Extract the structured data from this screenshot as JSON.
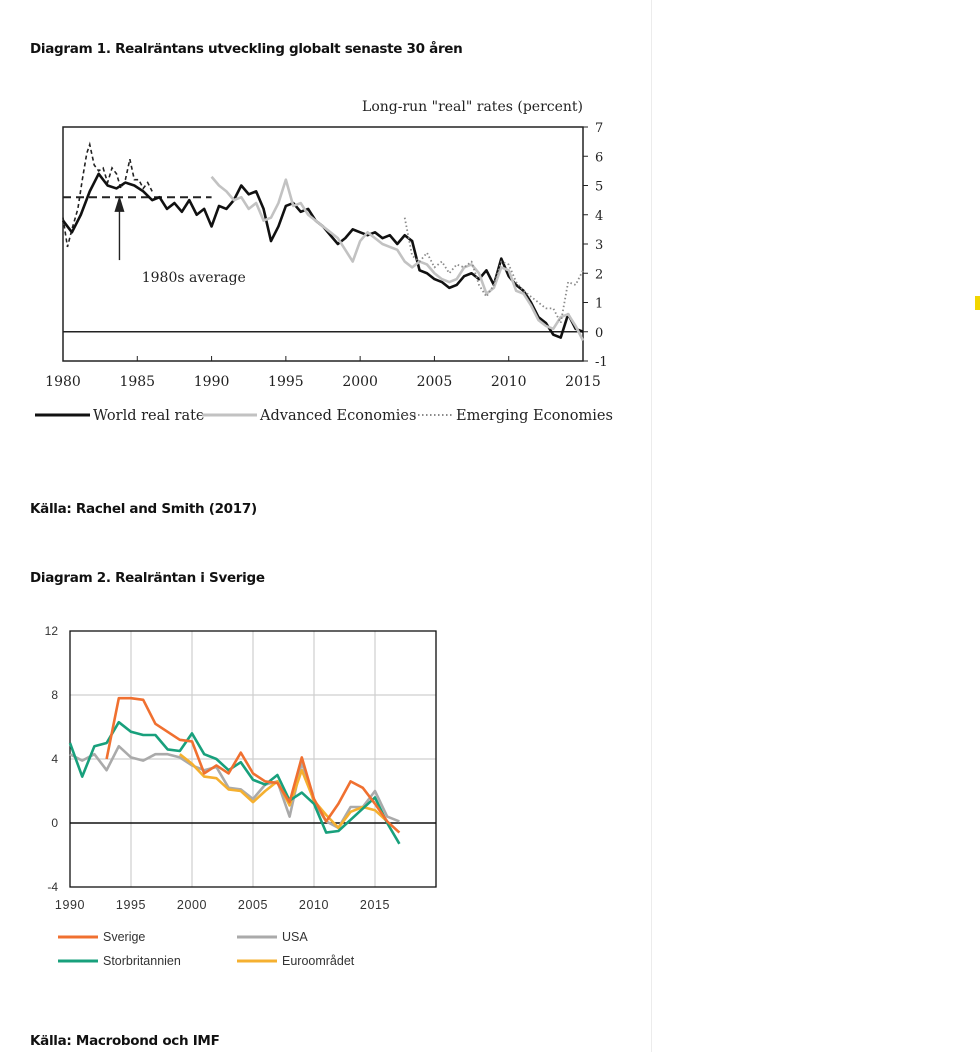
{
  "headings": {
    "diagram1": "Diagram 1. Realräntans utveckling globalt senaste 30 åren",
    "source1": "Källa: Rachel and Smith (2017)",
    "diagram2": "Diagram 2. Realräntan i Sverige",
    "source2": "Källa: Macrobond och IMF"
  },
  "chart_data": [
    {
      "type": "line",
      "title": "Long-run \"real\" rates (percent)",
      "xlim": [
        1980,
        2015
      ],
      "ylim": [
        -1,
        7
      ],
      "x_ticks": [
        1980,
        1985,
        1990,
        1995,
        2000,
        2005,
        2010,
        2015
      ],
      "y_ticks": [
        -1,
        0,
        1,
        2,
        3,
        4,
        5,
        6,
        7
      ],
      "legend_position": "bottom",
      "grid": false,
      "annotation": "1980s average",
      "reference_line": {
        "name": "1980s average",
        "y": 4.6,
        "x_range": [
          1980,
          1990
        ]
      },
      "series": [
        {
          "name": "World real rate",
          "color": "#111111",
          "style": "solid",
          "x": [
            1980.0,
            1980.6,
            1981.2,
            1981.8,
            1982.4,
            1983.0,
            1983.6,
            1984.2,
            1984.8,
            1985.4,
            1986.0,
            1986.5,
            1987.0,
            1987.5,
            1988.0,
            1988.5,
            1989.0,
            1989.5,
            1990.0,
            1990.5,
            1991.0,
            1991.5,
            1992.0,
            1992.5,
            1993.0,
            1993.5,
            1994.0,
            1994.5,
            1995.0,
            1995.5,
            1996.0,
            1996.5,
            1997.0,
            1997.5,
            1998.0,
            1998.5,
            1999.0,
            1999.5,
            2000.0,
            2000.5,
            2001.0,
            2001.5,
            2002.0,
            2002.5,
            2003.0,
            2003.5,
            2004.0,
            2004.5,
            2005.0,
            2005.5,
            2006.0,
            2006.5,
            2007.0,
            2007.5,
            2008.0,
            2008.5,
            2009.0,
            2009.5,
            2010.0,
            2010.5,
            2011.0,
            2011.5,
            2012.0,
            2012.5,
            2013.0,
            2013.5,
            2014.0,
            2014.5,
            2015.0
          ],
          "y": [
            3.8,
            3.4,
            4.0,
            4.8,
            5.4,
            5.0,
            4.9,
            5.1,
            5.0,
            4.8,
            4.5,
            4.6,
            4.2,
            4.4,
            4.1,
            4.5,
            4.0,
            4.2,
            3.6,
            4.3,
            4.2,
            4.5,
            5.0,
            4.7,
            4.8,
            4.2,
            3.1,
            3.6,
            4.3,
            4.4,
            4.1,
            4.2,
            3.8,
            3.6,
            3.3,
            3.0,
            3.2,
            3.5,
            3.4,
            3.3,
            3.4,
            3.2,
            3.3,
            3.0,
            3.3,
            3.1,
            2.1,
            2.0,
            1.8,
            1.7,
            1.5,
            1.6,
            1.9,
            2.0,
            1.8,
            2.1,
            1.6,
            2.5,
            1.9,
            1.6,
            1.4,
            1.0,
            0.5,
            0.3,
            -0.1,
            -0.2,
            0.6,
            0.1,
            0.0
          ]
        },
        {
          "name": "Advanced Economies",
          "color": "#c2c2c2",
          "style": "solid",
          "x": [
            1990.0,
            1990.5,
            1991.0,
            1991.5,
            1992.0,
            1992.5,
            1993.0,
            1993.5,
            1994.0,
            1994.5,
            1995.0,
            1995.5,
            1996.0,
            1996.5,
            1997.0,
            1997.5,
            1998.0,
            1998.5,
            1999.0,
            1999.5,
            2000.0,
            2000.5,
            2001.0,
            2001.5,
            2002.0,
            2002.5,
            2003.0,
            2003.5,
            2004.0,
            2004.5,
            2005.0,
            2005.5,
            2006.0,
            2006.5,
            2007.0,
            2007.5,
            2008.0,
            2008.5,
            2009.0,
            2009.5,
            2010.0,
            2010.5,
            2011.0,
            2011.5,
            2012.0,
            2012.5,
            2013.0,
            2013.5,
            2014.0,
            2014.5,
            2015.0
          ],
          "y": [
            5.3,
            5.0,
            4.8,
            4.5,
            4.6,
            4.2,
            4.4,
            3.8,
            3.9,
            4.4,
            5.2,
            4.3,
            4.4,
            4.0,
            3.8,
            3.6,
            3.4,
            3.2,
            2.8,
            2.4,
            3.1,
            3.4,
            3.2,
            3.0,
            2.9,
            2.8,
            2.4,
            2.2,
            2.4,
            2.3,
            2.0,
            1.8,
            1.7,
            1.8,
            2.2,
            2.3,
            2.0,
            1.3,
            1.5,
            2.2,
            2.1,
            1.4,
            1.3,
            0.9,
            0.4,
            0.2,
            0.1,
            0.5,
            0.6,
            0.2,
            -0.3
          ]
        },
        {
          "name": "Emerging Economies",
          "color": "#8a8a8a",
          "style": "dotted",
          "x": [
            2003.0,
            2003.5,
            2004.0,
            2004.5,
            2005.0,
            2005.5,
            2006.0,
            2006.5,
            2007.0,
            2007.5,
            2008.0,
            2008.5,
            2009.0,
            2009.5,
            2010.0,
            2010.5,
            2011.0,
            2011.5,
            2012.0,
            2012.5,
            2013.0,
            2013.5,
            2014.0,
            2014.5,
            2015.0
          ],
          "y": [
            3.9,
            2.6,
            2.4,
            2.7,
            2.2,
            2.4,
            2.0,
            2.3,
            2.2,
            2.4,
            1.6,
            1.2,
            1.6,
            2.4,
            2.3,
            1.7,
            1.4,
            1.2,
            1.0,
            0.8,
            0.8,
            0.3,
            1.7,
            1.6,
            2.1
          ]
        }
      ]
    },
    {
      "type": "line",
      "xlim": [
        1990,
        2020
      ],
      "ylim": [
        -4,
        12
      ],
      "x_ticks": [
        1990,
        1995,
        2000,
        2005,
        2010,
        2015
      ],
      "y_ticks": [
        -4,
        0,
        4,
        8,
        12
      ],
      "grid": true,
      "legend_position": "bottom",
      "series": [
        {
          "name": "Sverige",
          "color": "#f07030",
          "x": [
            1993,
            1994,
            1995,
            1996,
            1997,
            1998,
            1999,
            2000,
            2001,
            2002,
            2003,
            2004,
            2005,
            2006,
            2007,
            2008,
            2009,
            2010,
            2011,
            2012,
            2013,
            2014,
            2015,
            2016,
            2017
          ],
          "y": [
            4.0,
            7.8,
            7.8,
            7.7,
            6.2,
            5.7,
            5.2,
            5.1,
            3.1,
            3.6,
            3.1,
            4.4,
            3.1,
            2.6,
            2.5,
            1.3,
            4.1,
            1.5,
            0.1,
            1.2,
            2.6,
            2.2,
            1.2,
            0.1,
            -0.6
          ]
        },
        {
          "name": "USA",
          "color": "#aaaaaa",
          "x": [
            1990,
            1991,
            1992,
            1993,
            1994,
            1995,
            1996,
            1997,
            1998,
            1999,
            2000,
            2001,
            2002,
            2003,
            2004,
            2005,
            2006,
            2007,
            2008,
            2009,
            2010,
            2011,
            2012,
            2013,
            2014,
            2015,
            2016,
            2017
          ],
          "y": [
            4.3,
            3.9,
            4.3,
            3.3,
            4.8,
            4.1,
            3.9,
            4.3,
            4.3,
            4.1,
            3.6,
            3.3,
            3.5,
            2.2,
            2.1,
            1.5,
            2.4,
            2.6,
            0.4,
            3.8,
            1.3,
            0.1,
            -0.3,
            1.0,
            1.0,
            2.0,
            0.4,
            0.1
          ]
        },
        {
          "name": "Storbritannien",
          "color": "#18a07c",
          "x": [
            1990,
            1991,
            1992,
            1993,
            1994,
            1995,
            1996,
            1997,
            1998,
            1999,
            2000,
            2001,
            2002,
            2003,
            2004,
            2005,
            2006,
            2007,
            2008,
            2009,
            2010,
            2011,
            2012,
            2013,
            2014,
            2015,
            2016,
            2017
          ],
          "y": [
            5.0,
            2.9,
            4.8,
            5.0,
            6.3,
            5.7,
            5.5,
            5.5,
            4.6,
            4.5,
            5.6,
            4.3,
            4.0,
            3.3,
            3.8,
            2.7,
            2.4,
            3.0,
            1.4,
            1.9,
            1.2,
            -0.6,
            -0.5,
            0.2,
            0.9,
            1.6,
            0.0,
            -1.3
          ]
        },
        {
          "name": "Euroområdet",
          "color": "#f5b030",
          "x": [
            1999,
            2000,
            2001,
            2002,
            2003,
            2004,
            2005,
            2006,
            2007,
            2008,
            2009,
            2010,
            2011,
            2012,
            2013,
            2014,
            2015,
            2016
          ],
          "y": [
            4.3,
            3.7,
            2.9,
            2.8,
            2.1,
            2.0,
            1.3,
            2.0,
            2.6,
            1.1,
            3.3,
            1.4,
            0.5,
            -0.3,
            0.7,
            1.0,
            0.8,
            0.1
          ]
        }
      ]
    }
  ]
}
